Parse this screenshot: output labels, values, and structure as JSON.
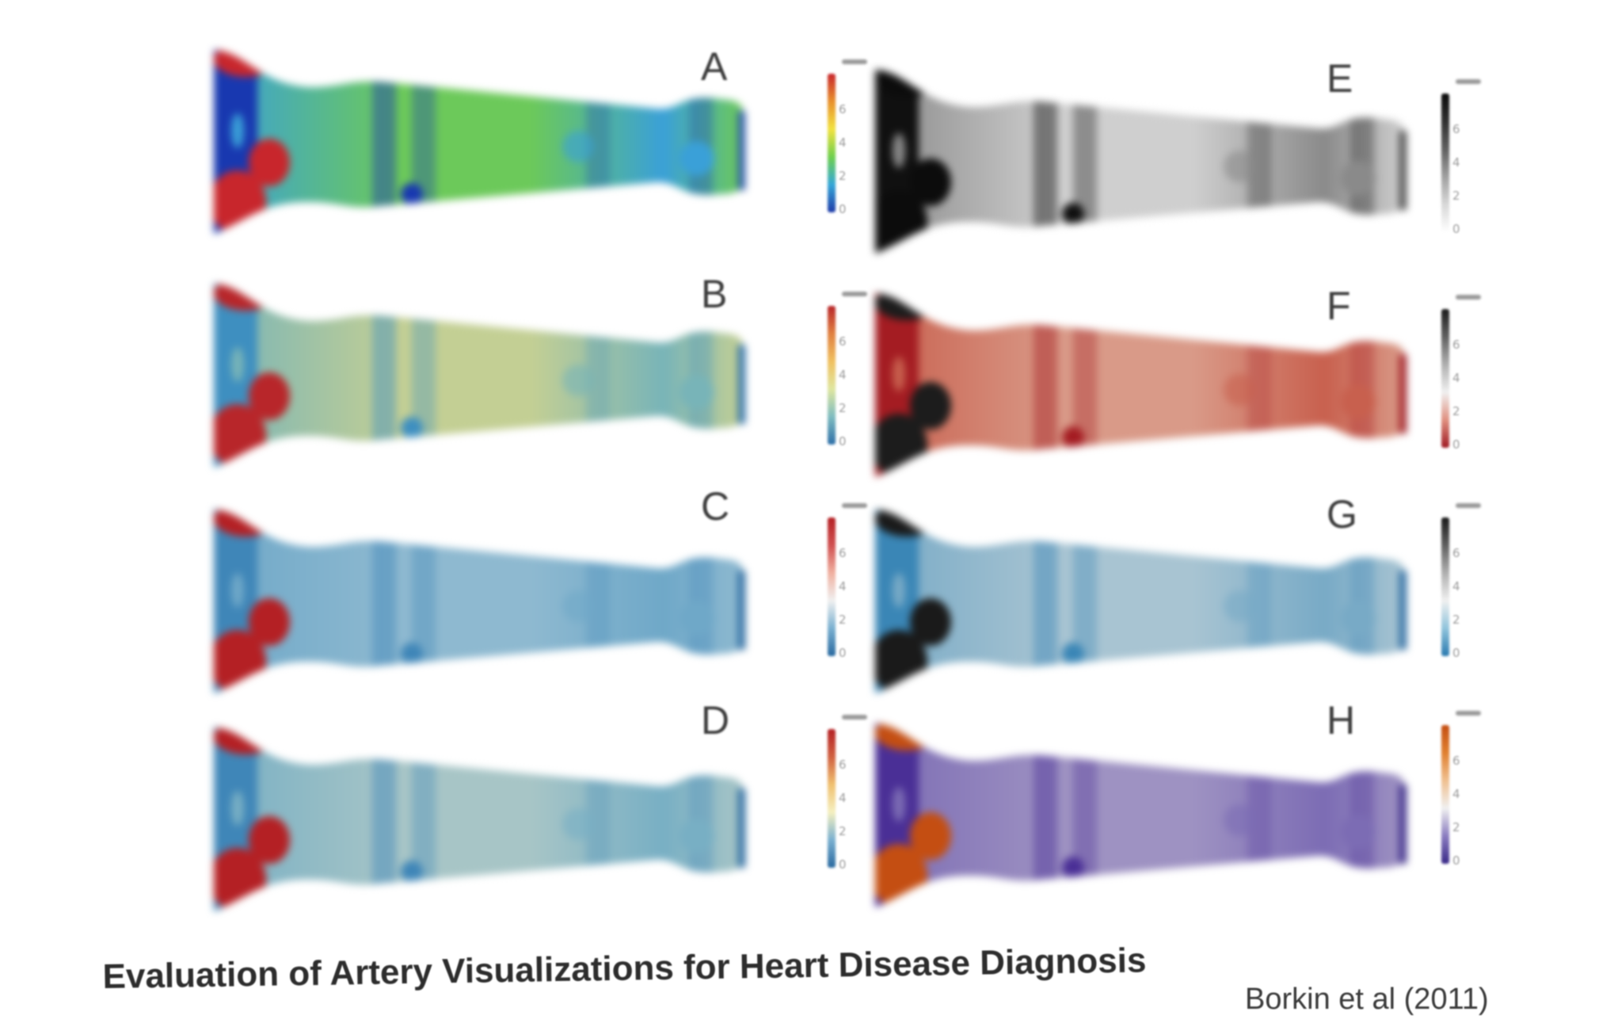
{
  "panels": [
    {
      "letter": "A",
      "scheme": "rainbow",
      "colors": {
        "base": "#6cc95a",
        "dark": "#1838b0",
        "dark2": "#3aa0d8",
        "hot": "#c8262c",
        "end": "#2a56a8"
      }
    },
    {
      "letter": "B",
      "scheme": "spectral-muted",
      "colors": {
        "base": "#c3cf94",
        "dark": "#3e8fc0",
        "dark2": "#78b4b8",
        "hot": "#b8262a",
        "end": "#2e6fa8"
      }
    },
    {
      "letter": "C",
      "scheme": "diverging-blue-red",
      "colors": {
        "base": "#8eb9d0",
        "dark": "#3f86b8",
        "dark2": "#6fa8c8",
        "hot": "#b42024",
        "end": "#2a6aa0"
      }
    },
    {
      "letter": "D",
      "scheme": "diverging-blue-yellow-red",
      "colors": {
        "base": "#a7c5c6",
        "dark": "#3f86b8",
        "dark2": "#78afc4",
        "hot": "#b42024",
        "end": "#2a6aa0"
      }
    },
    {
      "letter": "E",
      "scheme": "grayscale",
      "colors": {
        "base": "#cfcfcf",
        "dark": "#101010",
        "dark2": "#8a8a8a",
        "hot": "#0c0c0c",
        "end": "#4a4a4a"
      }
    },
    {
      "letter": "F",
      "scheme": "gray-red",
      "colors": {
        "base": "#d99a88",
        "dark": "#a41c22",
        "dark2": "#c8604e",
        "hot": "#1c1c1c",
        "end": "#a01c24"
      }
    },
    {
      "letter": "G",
      "scheme": "gray-blue",
      "colors": {
        "base": "#a8c4d2",
        "dark": "#3a86b6",
        "dark2": "#78aac6",
        "hot": "#1a1a1a",
        "end": "#2a6aa0"
      }
    },
    {
      "letter": "H",
      "scheme": "purple-orange",
      "colors": {
        "base": "#9e92c2",
        "dark": "#4a2f96",
        "dark2": "#7c6cb4",
        "hot": "#c44e12",
        "end": "#3a2a88"
      }
    }
  ],
  "colorbar_ticks": [
    "0",
    "2",
    "4",
    "6"
  ],
  "colorbars": [
    {
      "gradient": [
        "#1e3aa8",
        "#35a7d8",
        "#6fcf4e",
        "#f2e240",
        "#e8902c",
        "#c8262c"
      ]
    },
    {
      "gradient": [
        "#2e6fa8",
        "#7fbcc0",
        "#dfe6a0",
        "#f0c060",
        "#e08040",
        "#b8262a"
      ]
    },
    {
      "gradient": [
        "#2a6aa0",
        "#7ab0d0",
        "#f0f0f0",
        "#f0b0a0",
        "#d05050",
        "#b42024"
      ]
    },
    {
      "gradient": [
        "#2a6aa0",
        "#7ab0d0",
        "#f5f0c0",
        "#f0c070",
        "#d06040",
        "#b42024"
      ]
    },
    {
      "gradient": [
        "#ffffff",
        "#d8d8d8",
        "#a0a0a0",
        "#606060",
        "#303030",
        "#0c0c0c"
      ]
    },
    {
      "gradient": [
        "#a01c24",
        "#e09080",
        "#f0f0f0",
        "#b0b0b0",
        "#606060",
        "#1c1c1c"
      ]
    },
    {
      "gradient": [
        "#2a7ab0",
        "#90c4dc",
        "#f0f0f0",
        "#b0b0b0",
        "#606060",
        "#1a1a1a"
      ]
    },
    {
      "gradient": [
        "#3a2a88",
        "#8a7cc0",
        "#f0f0f0",
        "#f0c090",
        "#e08030",
        "#c44e12"
      ]
    }
  ],
  "footer": {
    "title": "Evaluation of Artery Visualizations for Heart Disease Diagnosis",
    "citation": "Borkin et al (2011)"
  }
}
